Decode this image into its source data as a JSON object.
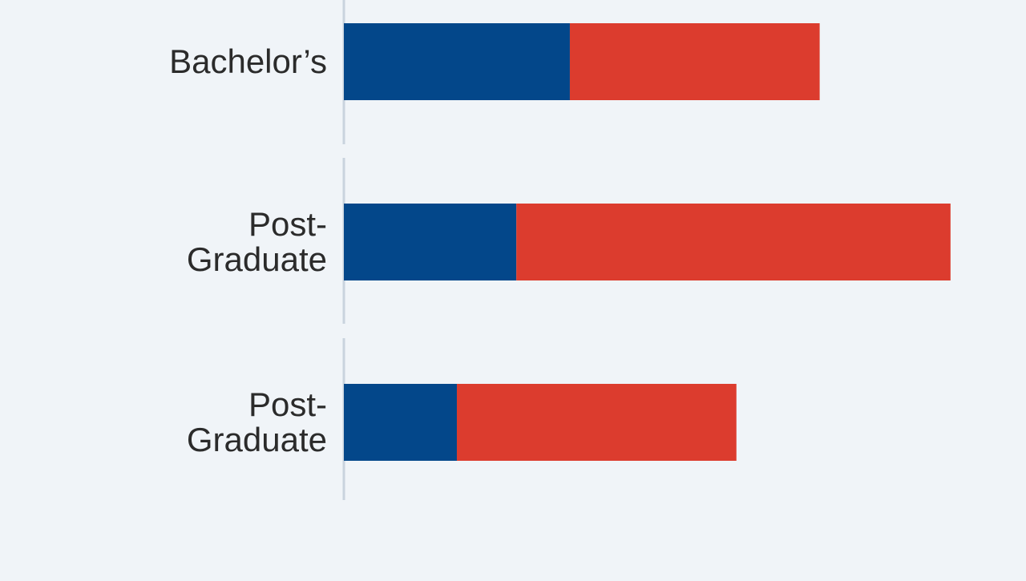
{
  "chart_data": {
    "type": "bar",
    "orientation": "horizontal",
    "stacked": true,
    "categories": [
      "Bachelor’s",
      "Post-Graduate",
      "Post-Graduate"
    ],
    "series": [
      {
        "values": [
          38,
          29,
          19
        ],
        "color": "#03478a"
      },
      {
        "values": [
          42,
          73,
          47
        ],
        "color": "#dc3c2e"
      }
    ],
    "xlim": [
      0,
      100
    ],
    "grid": false,
    "legend": "none"
  }
}
